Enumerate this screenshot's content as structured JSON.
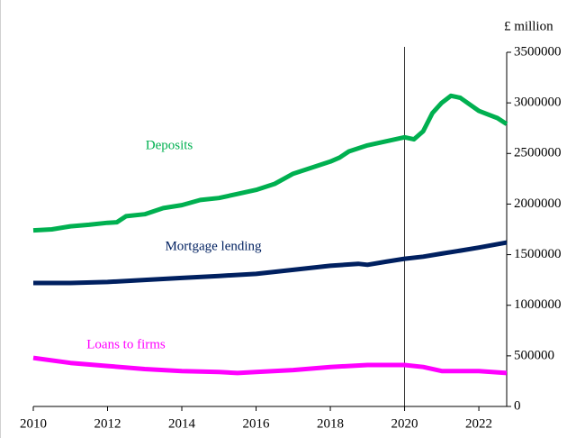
{
  "chart_data": {
    "type": "line",
    "y_axis_label": "£ million",
    "x": null,
    "series": [
      {
        "name": "Deposits",
        "color": "#00b050",
        "x": [
          2010,
          2010.5,
          2011,
          2011.5,
          2012,
          2012.25,
          2012.5,
          2013,
          2013.5,
          2014,
          2014.5,
          2015,
          2015.5,
          2016,
          2016.5,
          2017,
          2017.5,
          2018,
          2018.25,
          2018.5,
          2019,
          2019.5,
          2020,
          2020.25,
          2020.5,
          2020.75,
          2021,
          2021.25,
          2021.5,
          2022,
          2022.5,
          2022.75
        ],
        "values": [
          1740000,
          1750000,
          1780000,
          1795000,
          1815000,
          1820000,
          1880000,
          1900000,
          1960000,
          1990000,
          2040000,
          2060000,
          2100000,
          2140000,
          2200000,
          2300000,
          2360000,
          2420000,
          2460000,
          2520000,
          2580000,
          2620000,
          2660000,
          2640000,
          2720000,
          2900000,
          3000000,
          3070000,
          3050000,
          2920000,
          2850000,
          2790000
        ]
      },
      {
        "name": "Mortgage lending",
        "color": "#002060",
        "x": [
          2010,
          2011,
          2012,
          2013,
          2014,
          2015,
          2016,
          2017,
          2018,
          2018.75,
          2019,
          2019.5,
          2020,
          2020.5,
          2021,
          2021.5,
          2022,
          2022.75
        ],
        "values": [
          1220000,
          1220000,
          1230000,
          1250000,
          1270000,
          1290000,
          1310000,
          1350000,
          1390000,
          1410000,
          1400000,
          1430000,
          1460000,
          1480000,
          1510000,
          1540000,
          1570000,
          1620000
        ]
      },
      {
        "name": "Loans to firms",
        "color": "#ff00ff",
        "x": [
          2010,
          2011,
          2012,
          2013,
          2014,
          2015,
          2015.5,
          2016,
          2017,
          2018,
          2019,
          2020,
          2020.5,
          2021,
          2022,
          2022.75
        ],
        "values": [
          480000,
          430000,
          400000,
          370000,
          350000,
          340000,
          330000,
          340000,
          360000,
          390000,
          410000,
          410000,
          390000,
          350000,
          350000,
          330000
        ]
      }
    ],
    "xlim": [
      2010,
      2022.75
    ],
    "xticks": [
      2010,
      2012,
      2014,
      2016,
      2018,
      2020,
      2022
    ],
    "ylim": [
      0,
      3500000
    ],
    "yticks": [
      0,
      500000,
      1000000,
      1500000,
      2000000,
      2500000,
      3000000,
      3500000
    ],
    "y_axis_side": "right",
    "grid": false,
    "vlines": [
      2020
    ]
  }
}
